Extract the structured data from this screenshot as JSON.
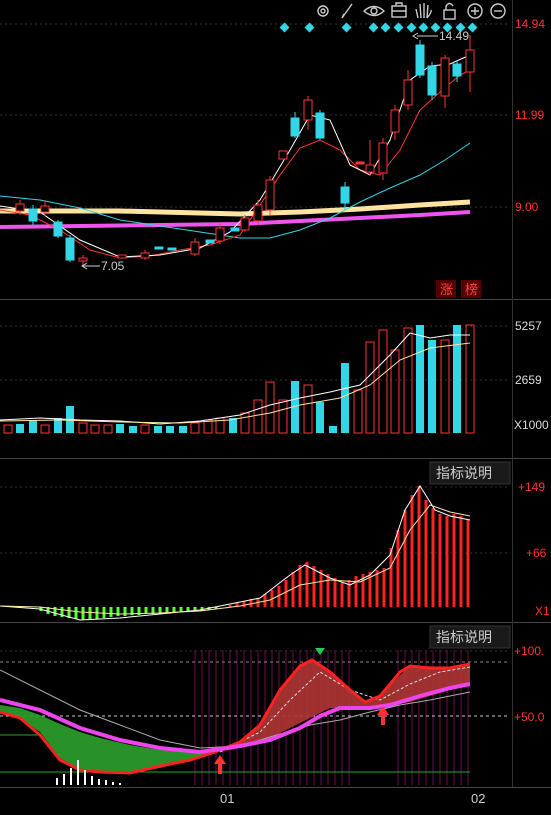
{
  "toolbar": {
    "icons": [
      "gear-icon",
      "draw-icon",
      "eye-icon",
      "briefcase-icon",
      "hand-icon",
      "lock-icon",
      "zoom-in-icon",
      "zoom-out-icon"
    ]
  },
  "price_panel": {
    "axis_labels": [
      "14.94",
      "11.99",
      "9.00"
    ],
    "high_label": "14.49",
    "low_label": "7.05",
    "badges": [
      "涨",
      "榜"
    ],
    "up_color": "#ff3333",
    "down_color": "#33d6e6",
    "ma_colors": [
      "#ffffff",
      "#ff3333",
      "#33d6e6",
      "#ffe4a0",
      "#ee55ee"
    ]
  },
  "volume_panel": {
    "axis_labels": [
      "5257",
      "2659",
      "X1000"
    ]
  },
  "macd_panel": {
    "indicator_button": "指标说明",
    "axis_labels": [
      "+149",
      "+66",
      "X1"
    ]
  },
  "kdj_panel": {
    "indicator_button": "指标说明",
    "axis_labels": [
      "+100.",
      "+50.0"
    ]
  },
  "time_axis": {
    "labels": [
      "01",
      "02"
    ]
  }
}
